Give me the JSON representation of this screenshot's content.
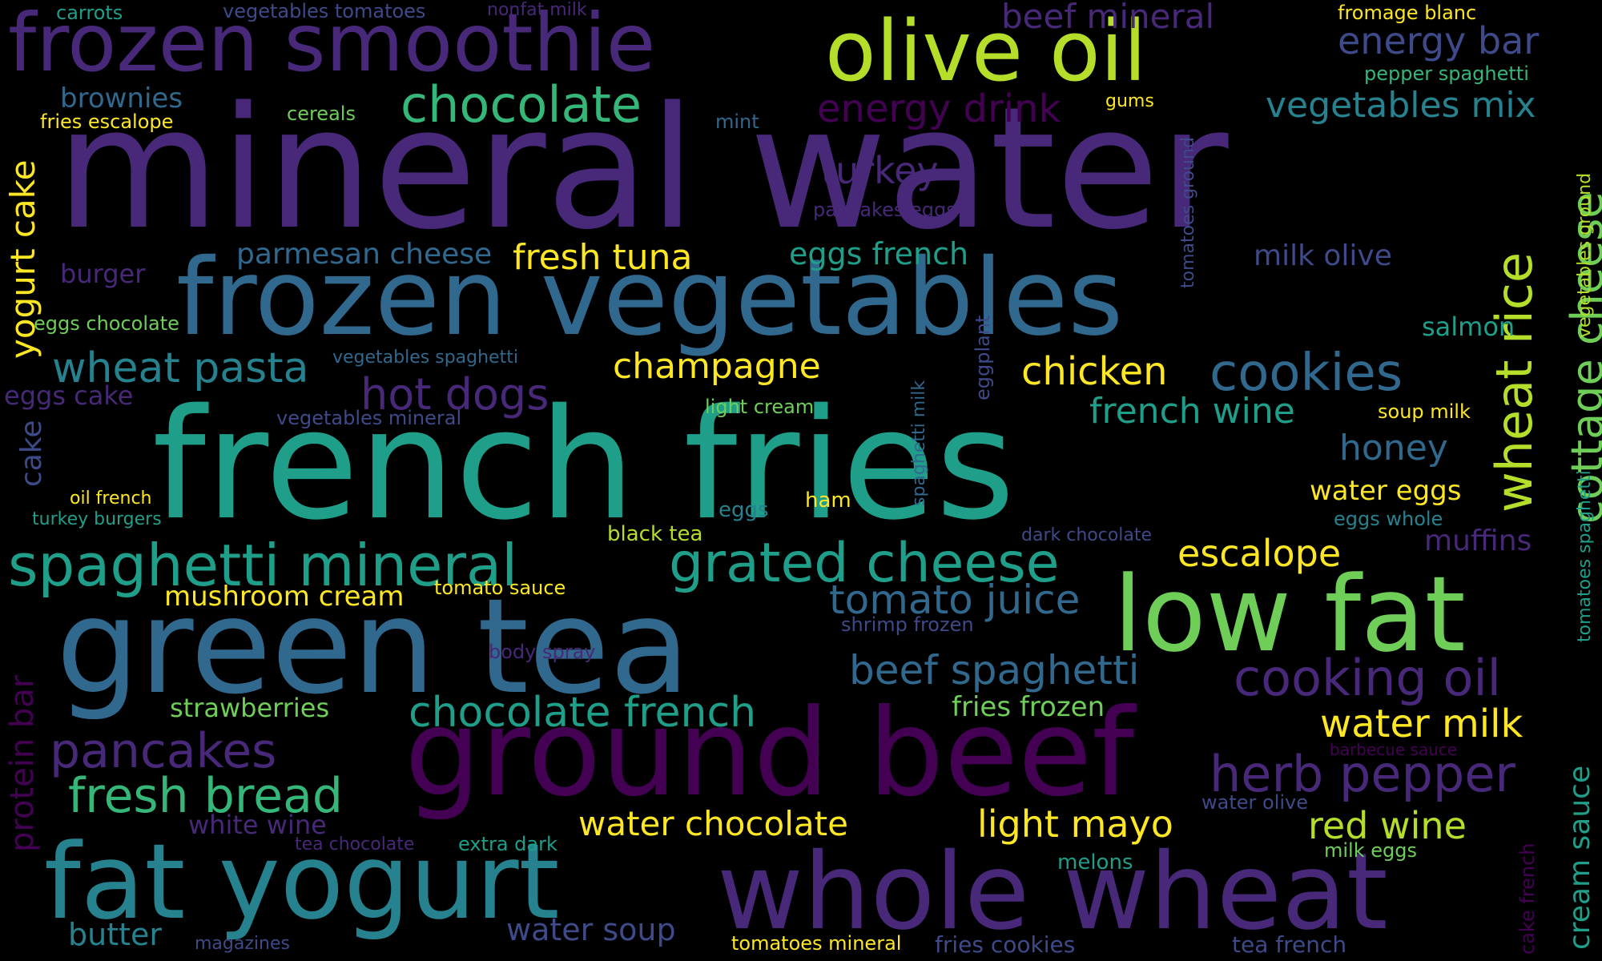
{
  "palette": {
    "background": "#000000",
    "c1": "#440154",
    "c2": "#482878",
    "c3": "#3e4a89",
    "c4": "#31688e",
    "c5": "#26828e",
    "c6": "#1f9e89",
    "c7": "#35b779",
    "c8": "#6ece58",
    "c9": "#b5de2b",
    "c10": "#fde725"
  },
  "words": {
    "w001": "mineral water",
    "w002": "french fries",
    "w003": "green tea",
    "w004": "frozen vegetables",
    "w005": "ground beef",
    "w006": "whole wheat",
    "w007": "fat yogurt",
    "w008": "low fat",
    "w009": "frozen smoothie",
    "w010": "olive oil",
    "w011": "chocolate",
    "w012": "spaghetti mineral",
    "w013": "grated cheese",
    "w014": "cookies",
    "w015": "cooking oil",
    "w016": "wheat rice",
    "w017": "cottage cheese",
    "w018": "herb pepper",
    "w019": "pancakes",
    "w020": "fresh bread",
    "w021": "hot dogs",
    "w022": "wheat pasta",
    "w023": "chocolate french",
    "w024": "tomato juice",
    "w025": "beef spaghetti",
    "w026": "energy drink",
    "w027": "energy bar",
    "w028": "beef mineral",
    "w029": "vegetables mix",
    "w030": "turkey",
    "w031": "yogurt cake",
    "w032": "protein bar",
    "w033": "french wine",
    "w034": "chicken",
    "w035": "champagne",
    "w036": "fresh tuna",
    "w037": "water milk",
    "w038": "red wine",
    "w039": "light mayo",
    "w040": "water chocolate",
    "w041": "escalope",
    "w042": "honey",
    "w043": "eggs french",
    "w044": "parmesan cheese",
    "w045": "brownies",
    "w046": "milk olive",
    "w047": "muffins",
    "w048": "salmon",
    "w049": "cream sauce",
    "w050": "mushroom cream",
    "w051": "strawberries",
    "w052": "fries frozen",
    "w053": "water soup",
    "w054": "butter",
    "w055": "white wine",
    "w056": "water eggs",
    "w057": "burger",
    "w058": "eggs cake",
    "w059": "cake",
    "w060": "eggs whole",
    "w061": "carrots",
    "w062": "vegetables tomatoes",
    "w063": "nonfat milk",
    "w064": "fromage blanc",
    "w065": "pepper spaghetti",
    "w066": "cereals",
    "w067": "fries escalope",
    "w068": "mint",
    "w069": "gums",
    "w070": "pancakes eggs",
    "w071": "tomatoes ground",
    "w072": "vegetables ground",
    "w073": "eggs chocolate",
    "w074": "vegetables spaghetti",
    "w075": "vegetables mineral",
    "w076": "light cream",
    "w077": "spaghetti milk",
    "w078": "eggplant",
    "w079": "soup milk",
    "w080": "tomatoes spaghetti",
    "w081": "oil french",
    "w082": "turkey burgers",
    "w083": "eggs",
    "w084": "ham",
    "w085": "black tea",
    "w086": "dark chocolate",
    "w087": "tomato sauce",
    "w088": "shrimp frozen",
    "w089": "body spray",
    "w090": "barbecue sauce",
    "w091": "water olive",
    "w092": "tea chocolate",
    "w093": "extra dark",
    "w094": "melons",
    "w095": "milk eggs",
    "w096": "cake french",
    "w097": "magazines",
    "w098": "tomatoes mineral",
    "w099": "fries cookies",
    "w100": "tea french"
  }
}
